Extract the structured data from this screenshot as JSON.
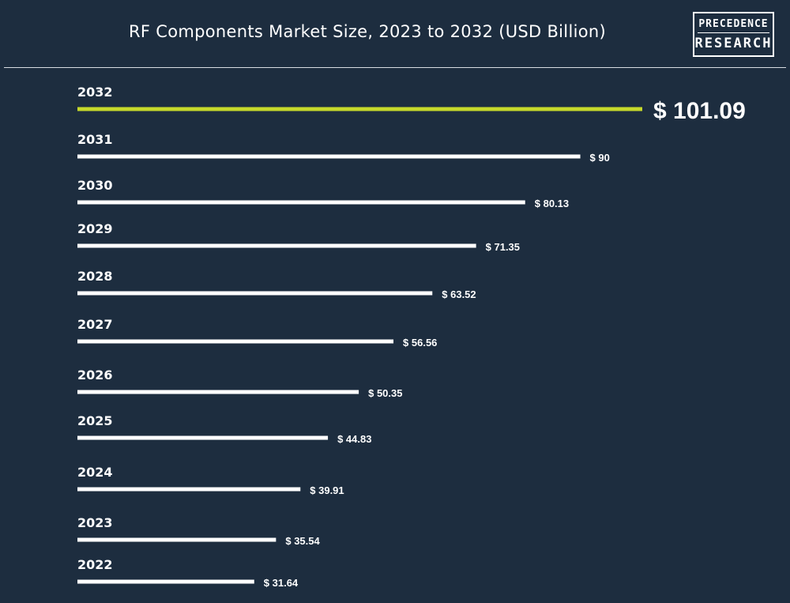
{
  "header": {
    "title": "RF Components Market Size, 2023 to 2032 (USD Billion)",
    "logo_line1": "PRECEDENCE",
    "logo_line2": "RESEARCH"
  },
  "colors": {
    "background": "#1d2d3f",
    "bar": "#ffffff",
    "highlight": "#c6d92b"
  },
  "chart_data": {
    "type": "bar",
    "orientation": "horizontal",
    "title": "RF Components Market Size, 2023 to 2032 (USD Billion)",
    "categories": [
      "2032",
      "2031",
      "2030",
      "2029",
      "2028",
      "2027",
      "2026",
      "2025",
      "2024",
      "2023",
      "2022"
    ],
    "values": [
      101.09,
      90,
      80.13,
      71.35,
      63.52,
      56.56,
      50.35,
      44.83,
      39.91,
      35.54,
      31.64
    ],
    "value_labels": [
      "$ 101.09",
      "$ 90",
      "$ 80.13",
      "$ 71.35",
      "$ 63.52",
      "$ 56.56",
      "$ 50.35",
      "$ 44.83",
      "$ 39.91",
      "$ 35.54",
      "$ 31.64"
    ],
    "highlight_category": "2032",
    "xlabel": "",
    "ylabel": "",
    "xlim": [
      0,
      101.09
    ],
    "grid": false,
    "legend": "none"
  }
}
